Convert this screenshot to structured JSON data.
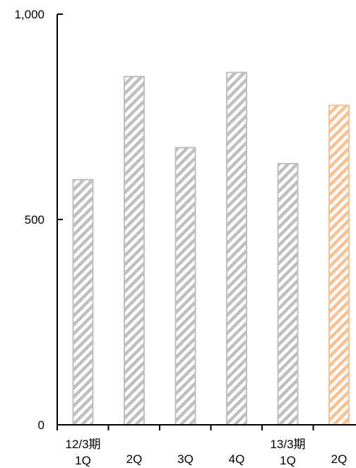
{
  "chart_data": {
    "type": "bar",
    "categories": [
      [
        "12/3期",
        "1Q"
      ],
      [
        "",
        "2Q"
      ],
      [
        "",
        "3Q"
      ],
      [
        "",
        "4Q"
      ],
      [
        "13/3期",
        "1Q"
      ],
      [
        "",
        "2Q"
      ]
    ],
    "values": [
      597,
      848,
      675,
      858,
      636,
      778
    ],
    "bar_colors": [
      "#bfbfbf",
      "#bfbfbf",
      "#bfbfbf",
      "#bfbfbf",
      "#bfbfbf",
      "#fac090"
    ],
    "bar_style": "diagonal-hatch",
    "ylim": [
      0,
      1000
    ],
    "yticks": [
      0,
      500,
      1000
    ],
    "ytick_labels": [
      "0",
      "500",
      "1,000"
    ],
    "grid": false,
    "title": "",
    "xlabel": "",
    "ylabel": ""
  }
}
